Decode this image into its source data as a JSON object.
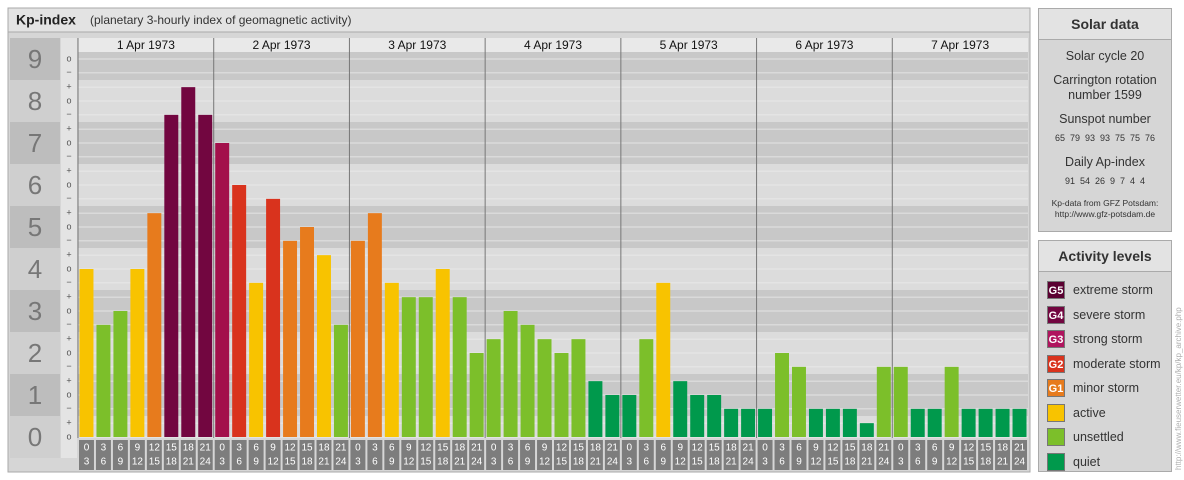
{
  "chart_data": {
    "type": "bar",
    "title": "Kp-index",
    "subtitle": "(planetary 3-hourly index of geomagnetic activity)",
    "days": [
      "1 Apr 1973",
      "2 Apr 1973",
      "3 Apr 1973",
      "4 Apr 1973",
      "5 Apr 1973",
      "6 Apr 1973",
      "7 Apr 1973"
    ],
    "hours": [
      [
        0,
        3
      ],
      [
        3,
        6
      ],
      [
        6,
        9
      ],
      [
        9,
        12
      ],
      [
        12,
        15
      ],
      [
        15,
        18
      ],
      [
        18,
        21
      ],
      [
        21,
        24
      ]
    ],
    "values": [
      4,
      2.67,
      3,
      4,
      5.33,
      7.67,
      8.33,
      7.67,
      7,
      6,
      3.67,
      5.67,
      4.67,
      5,
      4.33,
      2.67,
      4.67,
      5.33,
      3.67,
      3.33,
      3.33,
      4,
      3.33,
      2,
      2.33,
      3,
      2.67,
      2.33,
      2,
      2.33,
      1.33,
      1,
      1,
      2.33,
      3.67,
      1.33,
      1,
      1,
      0.67,
      0.67,
      0.67,
      2,
      1.67,
      0.67,
      0.67,
      0.67,
      0.33,
      1.67,
      1.67,
      0.67,
      0.67,
      1.67,
      0.67,
      0.67,
      0.67,
      0.67
    ],
    "colors": [
      "#f8c300",
      "#7cbf2a",
      "#7cbf2a",
      "#f8c300",
      "#e77b1d",
      "#720640",
      "#720640",
      "#720640",
      "#a3104b",
      "#d9331d",
      "#f8c300",
      "#d9331d",
      "#e77b1d",
      "#e77b1d",
      "#f8c300",
      "#7cbf2a",
      "#e77b1d",
      "#e77b1d",
      "#f8c300",
      "#7cbf2a",
      "#7cbf2a",
      "#f8c300",
      "#7cbf2a",
      "#7cbf2a",
      "#7cbf2a",
      "#7cbf2a",
      "#7cbf2a",
      "#7cbf2a",
      "#7cbf2a",
      "#7cbf2a",
      "#00994c",
      "#00994c",
      "#00994c",
      "#7cbf2a",
      "#f8c300",
      "#00994c",
      "#00994c",
      "#00994c",
      "#00994c",
      "#00994c",
      "#00994c",
      "#7cbf2a",
      "#7cbf2a",
      "#00994c",
      "#00994c",
      "#00994c",
      "#00994c",
      "#7cbf2a",
      "#7cbf2a",
      "#00994c",
      "#00994c",
      "#7cbf2a",
      "#00994c",
      "#00994c",
      "#00994c",
      "#00994c"
    ],
    "ylim": [
      -0.5,
      9.5
    ],
    "yticks": [
      0,
      1,
      2,
      3,
      4,
      5,
      6,
      7,
      8,
      9
    ],
    "yticks_minor": [
      {
        "value": 0,
        "label": "o"
      },
      {
        "value": 0.33,
        "label": "+"
      },
      {
        "value": 0.67,
        "label": "−"
      },
      {
        "value": 1,
        "label": "o"
      },
      {
        "value": 1.33,
        "label": "+"
      },
      {
        "value": 1.67,
        "label": "−"
      },
      {
        "value": 2,
        "label": "o"
      },
      {
        "value": 2.33,
        "label": "+"
      },
      {
        "value": 2.67,
        "label": "−"
      },
      {
        "value": 3,
        "label": "o"
      },
      {
        "value": 3.33,
        "label": "+"
      },
      {
        "value": 3.67,
        "label": "−"
      },
      {
        "value": 4,
        "label": "o"
      },
      {
        "value": 4.33,
        "label": "+"
      },
      {
        "value": 4.67,
        "label": "−"
      },
      {
        "value": 5,
        "label": "o"
      },
      {
        "value": 5.33,
        "label": "+"
      },
      {
        "value": 5.67,
        "label": "−"
      },
      {
        "value": 6,
        "label": "o"
      },
      {
        "value": 6.33,
        "label": "+"
      },
      {
        "value": 6.67,
        "label": "−"
      },
      {
        "value": 7,
        "label": "o"
      },
      {
        "value": 7.33,
        "label": "+"
      },
      {
        "value": 7.67,
        "label": "−"
      },
      {
        "value": 8,
        "label": "o"
      },
      {
        "value": 8.33,
        "label": "+"
      },
      {
        "value": 8.67,
        "label": "−"
      },
      {
        "value": 9,
        "label": "o"
      }
    ],
    "grid": true
  },
  "solar_data": {
    "title": "Solar data",
    "cycle": "Solar cycle 20",
    "carrington": "Carrington rotation number 1599",
    "sunspot_title": "Sunspot number",
    "sunspot": [
      65,
      79,
      93,
      93,
      75,
      75,
      76
    ],
    "ap_title": "Daily Ap-index",
    "ap": [
      91,
      54,
      26,
      9,
      7,
      4,
      4
    ],
    "source": "Kp-data from GFZ Potsdam:",
    "source_url": "http://www.gfz-potsdam.de"
  },
  "activity_levels": {
    "title": "Activity levels",
    "items": [
      {
        "code": "G5",
        "name": "extreme storm",
        "color": "#5a0031"
      },
      {
        "code": "G4",
        "name": "severe storm",
        "color": "#720640"
      },
      {
        "code": "G3",
        "name": "strong storm",
        "color": "#b0145e"
      },
      {
        "code": "G2",
        "name": "moderate storm",
        "color": "#d9331d"
      },
      {
        "code": "G1",
        "name": "minor storm",
        "color": "#e77b1d"
      },
      {
        "name": "active",
        "color": "#f8c300"
      },
      {
        "name": "unsettled",
        "color": "#7cbf2a"
      },
      {
        "name": "quiet",
        "color": "#00994c"
      }
    ]
  },
  "watermark": "http://www.fieuserwetter.eu/kp/kp_archive.php"
}
